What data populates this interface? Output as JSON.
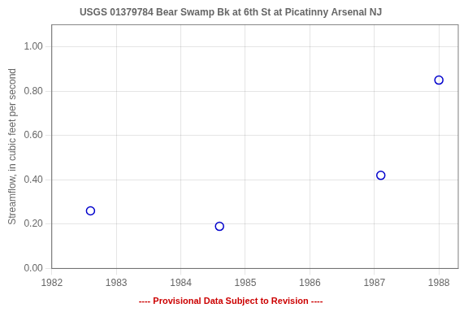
{
  "chart_data": {
    "type": "scatter",
    "title": "USGS 01379784 Bear Swamp Bk at 6th St at Picatinny Arsenal NJ",
    "ylabel": "Streamflow, in cubic feet per second",
    "x": [
      1982.6,
      1984.6,
      1987.1,
      1988.0
    ],
    "values": [
      0.26,
      0.19,
      0.42,
      0.85
    ],
    "color": "#0000cc",
    "marker": "circle",
    "xlim": [
      1982,
      1988.3
    ],
    "ylim": [
      0.0,
      1.1
    ],
    "xticks": [
      1982,
      1983,
      1984,
      1985,
      1986,
      1987,
      1988
    ],
    "yticks": [
      {
        "value": 0.0,
        "label": "0.00"
      },
      {
        "value": 0.2,
        "label": "0.20"
      },
      {
        "value": 0.4,
        "label": "0.40"
      },
      {
        "value": 0.6,
        "label": "0.60"
      },
      {
        "value": 0.8,
        "label": "0.80"
      },
      {
        "value": 1.0,
        "label": "1.00"
      }
    ],
    "grid": true,
    "annotations": [
      {
        "text": "---- Provisional Data Subject to Revision ----",
        "color": "#cc0000"
      }
    ]
  }
}
